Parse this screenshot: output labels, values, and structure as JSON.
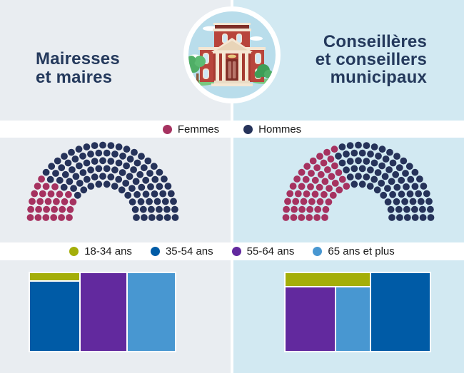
{
  "header": {
    "left_title_lines": [
      "Mairesses",
      "et maires"
    ],
    "right_title_lines": [
      "Conseillères",
      "et conseillers",
      "municipaux"
    ],
    "center_icon": "town-hall"
  },
  "colors": {
    "left_panel_bg": "#e9edf1",
    "right_panel_bg": "#d2e9f2",
    "divider": "#ffffff",
    "legend_strip_bg": "#ffffff",
    "title_text": "#24395c",
    "legend_text": "#1a1a1a",
    "women": "#a63260",
    "men": "#26335a",
    "age_18_34": "#a4ae08",
    "age_35_54": "#005ba6",
    "age_55_64": "#62299e",
    "age_65_plus": "#4897d1"
  },
  "gender_legend": [
    {
      "label": "Femmes",
      "color": "#a63260",
      "icon": "dot"
    },
    {
      "label": "Hommes",
      "color": "#26335a",
      "icon": "dot"
    }
  ],
  "age_legend": [
    {
      "label": "18-34 ans",
      "color": "#a4ae08",
      "icon": "dot"
    },
    {
      "label": "35-54 ans",
      "color": "#005ba6",
      "icon": "dot"
    },
    {
      "label": "55-64 ans",
      "color": "#62299e",
      "icon": "dot"
    },
    {
      "label": "65 ans et plus",
      "color": "#4897d1",
      "icon": "dot"
    }
  ],
  "chart_data": [
    {
      "type": "parliament",
      "panel": "mairesses-et-maires",
      "legend": [
        "Femmes",
        "Hommes"
      ],
      "seat_rows": [
        14,
        17,
        20,
        23,
        26,
        29
      ],
      "total_seats": 129,
      "women_seats_per_row": [
        3,
        4,
        4,
        5,
        5,
        6
      ],
      "women_seats": 27,
      "men_seats": 102,
      "women_share_pct_est": 21,
      "men_share_pct_est": 79,
      "women_color": "#a63260",
      "men_color": "#26335a",
      "inner_radius": 47,
      "row_spacing": 10.9,
      "seat_radius": 4.9
    },
    {
      "type": "parliament",
      "panel": "conseilleres-et-conseillers-municipaux",
      "legend": [
        "Femmes",
        "Hommes"
      ],
      "seat_rows": [
        14,
        17,
        20,
        23,
        26,
        29
      ],
      "total_seats": 129,
      "women_seats_per_row": [
        6,
        7,
        8,
        9,
        10,
        12
      ],
      "women_seats": 52,
      "men_seats": 77,
      "women_share_pct_est": 40,
      "men_share_pct_est": 60,
      "women_color": "#a63260",
      "men_color": "#26335a",
      "inner_radius": 47,
      "row_spacing": 10.9,
      "seat_radius": 4.9
    },
    {
      "type": "treemap",
      "panel": "mairesses-et-maires",
      "items": [
        {
          "label": "18-34 ans",
          "color": "#a4ae08",
          "share_pct_est": 3
        },
        {
          "label": "35-54 ans",
          "color": "#005ba6",
          "share_pct_est": 31
        },
        {
          "label": "55-64 ans",
          "color": "#62299e",
          "share_pct_est": 32
        },
        {
          "label": "65 ans et plus",
          "color": "#4897d1",
          "share_pct_est": 34
        }
      ],
      "layout": {
        "col1_w_pct": 33.8,
        "top_strip_h_pct": 9.5,
        "col2_w_pct": 31.5
      }
    },
    {
      "type": "treemap",
      "panel": "conseilleres-et-conseillers-municipaux",
      "items": [
        {
          "label": "18-34 ans",
          "color": "#a4ae08",
          "share_pct_est": 10
        },
        {
          "label": "35-54 ans",
          "color": "#005ba6",
          "share_pct_est": 42
        },
        {
          "label": "55-64 ans",
          "color": "#62299e",
          "share_pct_est": 28
        },
        {
          "label": "65 ans et plus",
          "color": "#4897d1",
          "share_pct_est": 20
        }
      ],
      "layout": {
        "group_w_pct": 58.6,
        "top_strip_h_pct": 16.8,
        "purple_w_pct": 58
      }
    }
  ]
}
